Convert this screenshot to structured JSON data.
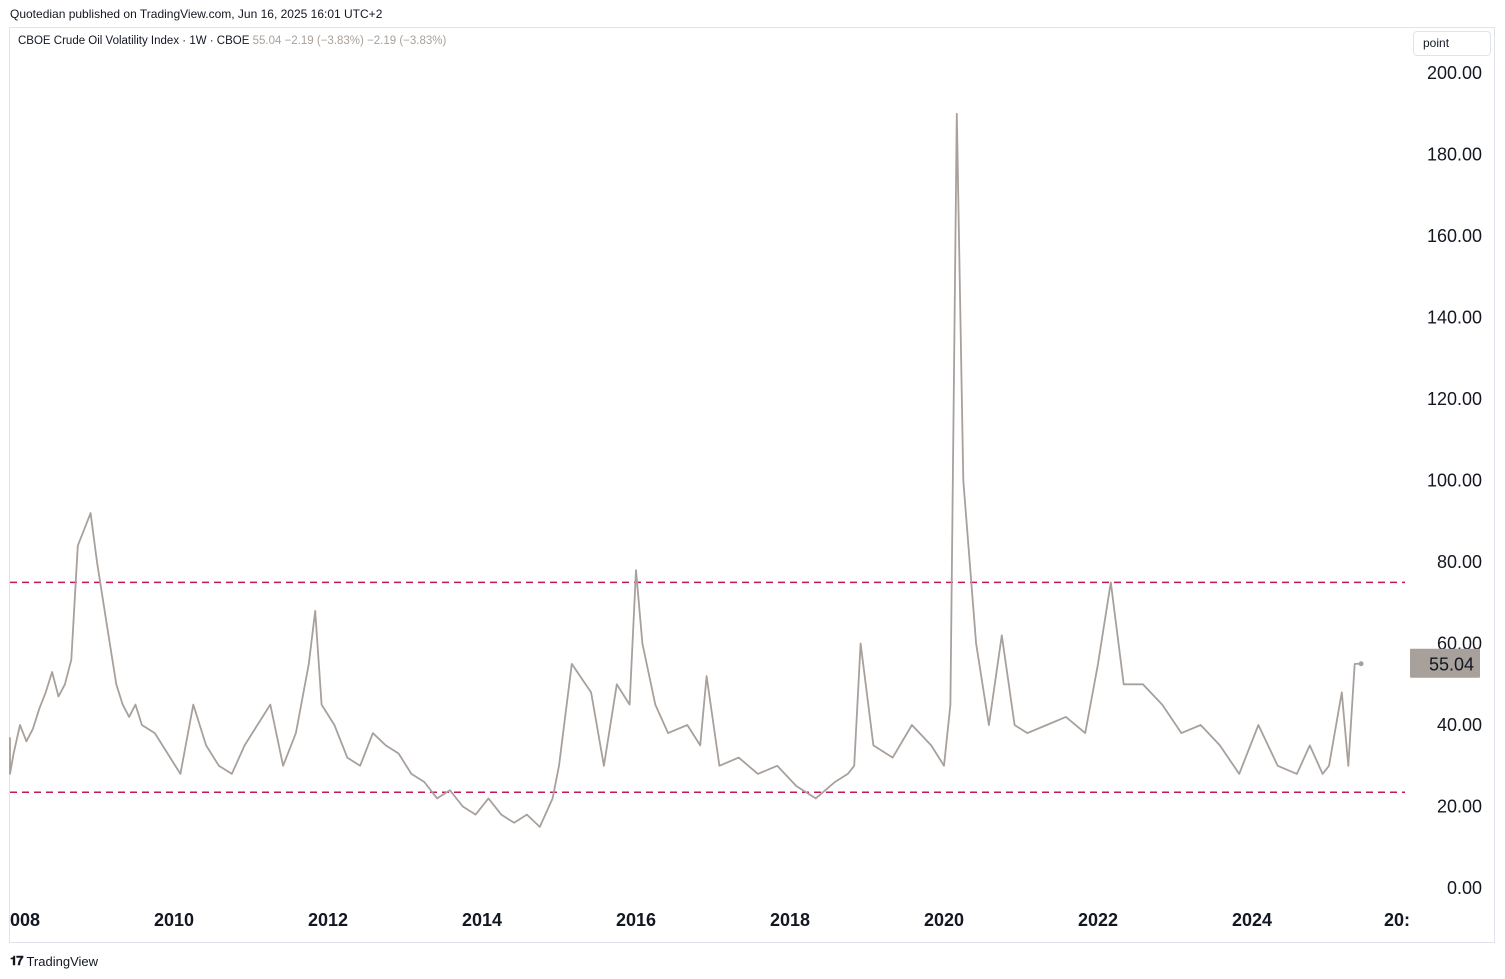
{
  "publisher_line": "Quotedian published on TradingView.com, Jun 16, 2025 16:01 UTC+2",
  "legend": {
    "name": "CBOE Crude Oil Volatility Index",
    "interval": "1W",
    "exchange": "CBOE",
    "last": "55.04",
    "change1": "−2.19 (−3.83%)",
    "change2": "−2.19 (−3.83%)"
  },
  "scale_button": "point",
  "brand": "TradingView",
  "colors": {
    "line": "#a8a09b",
    "level": "#c2185b",
    "last_badge": "#a8a09b",
    "axis_text": "#131722"
  },
  "chart_data": {
    "type": "line",
    "series": [
      {
        "values_note_free": true,
        "x": [
          "2007-10",
          "2007-11",
          "2007-12",
          "2008-01",
          "2008-02",
          "2008-03",
          "2008-04",
          "2008-05",
          "2008-06",
          "2008-07",
          "2008-08",
          "2008-09",
          "2008-10",
          "2008-11",
          "2008-12",
          "2009-01",
          "2009-02",
          "2009-03",
          "2009-04",
          "2009-05",
          "2009-06",
          "2009-07",
          "2009-08",
          "2009-10",
          "2009-12",
          "2010-02",
          "2010-04",
          "2010-06",
          "2010-08",
          "2010-10",
          "2010-12",
          "2011-02",
          "2011-04",
          "2011-06",
          "2011-08",
          "2011-10",
          "2011-11",
          "2011-12",
          "2012-02",
          "2012-04",
          "2012-06",
          "2012-08",
          "2012-10",
          "2012-12",
          "2013-02",
          "2013-04",
          "2013-06",
          "2013-08",
          "2013-10",
          "2013-12",
          "2014-02",
          "2014-04",
          "2014-06",
          "2014-08",
          "2014-10",
          "2014-12",
          "2015-01",
          "2015-03",
          "2015-06",
          "2015-08",
          "2015-10",
          "2015-12",
          "2016-01",
          "2016-02",
          "2016-04",
          "2016-06",
          "2016-09",
          "2016-11",
          "2016-12",
          "2017-02",
          "2017-05",
          "2017-08",
          "2017-11",
          "2018-02",
          "2018-05",
          "2018-08",
          "2018-10",
          "2018-11",
          "2018-12",
          "2019-02",
          "2019-05",
          "2019-08",
          "2019-11",
          "2020-01",
          "2020-02",
          "2020-03",
          "2020-04",
          "2020-05",
          "2020-06",
          "2020-08",
          "2020-10",
          "2020-12",
          "2021-02",
          "2021-05",
          "2021-08",
          "2021-11",
          "2022-01",
          "2022-03",
          "2022-05",
          "2022-08",
          "2022-11",
          "2023-02",
          "2023-05",
          "2023-08",
          "2023-11",
          "2024-02",
          "2024-05",
          "2024-08",
          "2024-10",
          "2024-12",
          "2025-01",
          "2025-03",
          "2025-04",
          "2025-05",
          "2025-06"
        ],
        "values": [
          37,
          28,
          33,
          40,
          36,
          39,
          44,
          48,
          53,
          47,
          50,
          56,
          84,
          88,
          92,
          80,
          70,
          60,
          50,
          45,
          42,
          45,
          40,
          38,
          33,
          28,
          45,
          35,
          30,
          28,
          35,
          40,
          45,
          30,
          38,
          55,
          68,
          45,
          40,
          32,
          30,
          38,
          35,
          33,
          28,
          26,
          22,
          24,
          20,
          18,
          22,
          18,
          16,
          18,
          15,
          22,
          30,
          55,
          48,
          30,
          50,
          45,
          78,
          60,
          45,
          38,
          40,
          35,
          52,
          30,
          32,
          28,
          30,
          25,
          22,
          26,
          28,
          30,
          60,
          35,
          32,
          40,
          35,
          30,
          45,
          190,
          100,
          80,
          60,
          40,
          62,
          40,
          38,
          40,
          42,
          38,
          55,
          75,
          50,
          50,
          45,
          38,
          40,
          35,
          28,
          40,
          30,
          28,
          35,
          28,
          30,
          48,
          30,
          55,
          55.04
        ]
      }
    ],
    "x_ticks": [
      "008",
      "2010",
      "2012",
      "2014",
      "2016",
      "2018",
      "2020",
      "2022",
      "2024",
      "20:"
    ],
    "y_ticks": [
      "0.00",
      "20.00",
      "40.00",
      "60.00",
      "80.00",
      "100.00",
      "120.00",
      "140.00",
      "160.00",
      "180.00",
      "200.00"
    ],
    "ylim": [
      0,
      200
    ],
    "last_value_label": "55.04",
    "horizontal_levels": [
      75,
      23.5
    ],
    "grid": false
  }
}
